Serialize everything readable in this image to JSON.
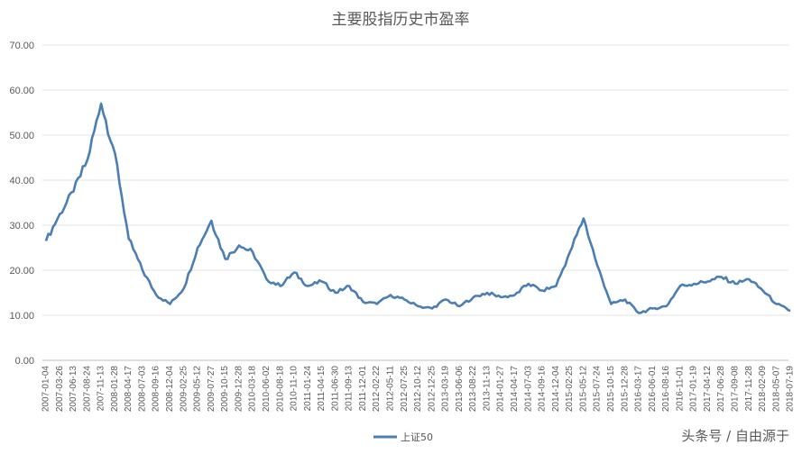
{
  "chart_data": {
    "type": "line",
    "title": "主要股指历史市盈率",
    "ylim": [
      0,
      70
    ],
    "y_ticks": [
      "0.00",
      "10.00",
      "20.00",
      "30.00",
      "40.00",
      "50.00",
      "60.00",
      "70.00"
    ],
    "grid": true,
    "legend_position": "bottom-center",
    "x": [
      "2007-01-04",
      "2007-03-26",
      "2007-06-13",
      "2007-08-24",
      "2007-11-13",
      "2008-01-28",
      "2008-04-17",
      "2008-07-03",
      "2008-09-16",
      "2008-12-04",
      "2009-02-25",
      "2009-05-12",
      "2009-07-27",
      "2009-10-15",
      "2009-12-28",
      "2010-03-18",
      "2010-06-02",
      "2010-08-18",
      "2010-11-10",
      "2011-01-24",
      "2011-04-15",
      "2011-06-30",
      "2011-09-13",
      "2011-12-01",
      "2012-02-22",
      "2012-05-11",
      "2012-07-25",
      "2012-10-12",
      "2012-12-25",
      "2013-03-19",
      "2013-06-06",
      "2013-08-22",
      "2013-11-13",
      "2014-01-27",
      "2014-04-17",
      "2014-07-03",
      "2014-09-16",
      "2014-12-04",
      "2015-02-25",
      "2015-05-12",
      "2015-07-24",
      "2015-10-15",
      "2015-12-28",
      "2016-03-17",
      "2016-06-01",
      "2016-08-16",
      "2016-11-01",
      "2017-01-19",
      "2017-04-12",
      "2017-06-28",
      "2017-09-08",
      "2017-11-28",
      "2018-02-09",
      "2018-05-07",
      "2018-07-19"
    ],
    "series": [
      {
        "name": "上证50",
        "color": "#4a7eb4",
        "values": [
          26.5,
          32.5,
          37.5,
          44.5,
          57.0,
          46.0,
          27.0,
          20.0,
          14.5,
          12.5,
          16.0,
          25.0,
          31.0,
          22.5,
          25.5,
          24.0,
          18.0,
          16.5,
          19.5,
          16.5,
          17.5,
          15.0,
          16.5,
          13.0,
          12.5,
          14.5,
          13.5,
          12.0,
          11.5,
          13.5,
          12.0,
          14.0,
          15.0,
          14.0,
          14.5,
          17.0,
          15.5,
          16.5,
          24.0,
          31.5,
          21.0,
          12.5,
          13.5,
          10.5,
          11.5,
          12.0,
          16.5,
          17.0,
          17.5,
          18.5,
          17.0,
          18.0,
          15.5,
          12.5,
          11.0
        ]
      }
    ]
  },
  "legend": {
    "label": "上证50"
  },
  "watermark": "头条号 / 自由源于"
}
